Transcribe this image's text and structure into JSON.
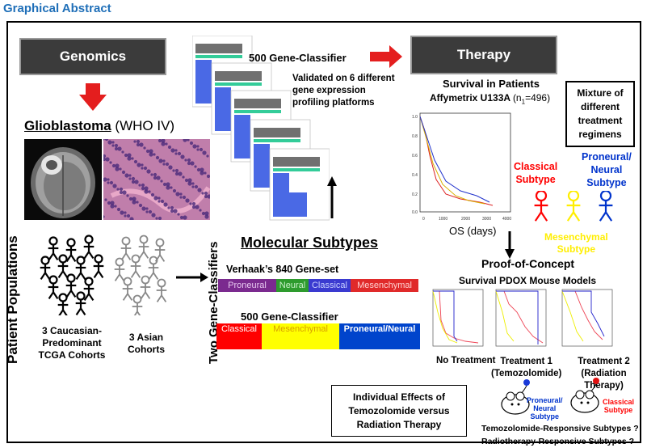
{
  "header": {
    "title": "Graphical Abstract"
  },
  "left": {
    "genomics": "Genomics",
    "glioblastoma": "Glioblastoma",
    "who": "(WHO IV)",
    "patient_populations": "Patient Populations",
    "cohort_a": [
      "3 Caucasian-",
      "Predominant",
      "TCGA Cohorts"
    ],
    "cohort_b": [
      "3 Asian",
      "Cohorts"
    ]
  },
  "center": {
    "classifier_title": "500 Gene-Classifier",
    "validated": [
      "Validated on 6 different",
      "gene expression",
      "profiling platforms"
    ],
    "molecular_subtypes": "Molecular Subtypes",
    "two_classifiers": "Two Gene-Classifiers",
    "verhaak": "Verhaak’s 840 Gene-set",
    "verhaak_segments": [
      {
        "label": "Proneural",
        "color": "#7b2a8f",
        "text": "#e8c8f0"
      },
      {
        "label": "Neural",
        "color": "#2e9b2e",
        "text": "#c8f0c8"
      },
      {
        "label": "Classical",
        "color": "#3a3ad0",
        "text": "#c8d0ff"
      },
      {
        "label": "Mesenchymal",
        "color": "#e02a2a",
        "text": "#ffd0d0"
      }
    ],
    "classifier2": "500 Gene-Classifier",
    "classifier2_segments": [
      {
        "label": "Classical",
        "color": "#ff0000",
        "text": "#ffffff"
      },
      {
        "label": "Mesenchymal",
        "color": "#ffff00",
        "text": "#d8a000"
      },
      {
        "label": "Proneural/Neural",
        "color": "#0044cc",
        "text": "#ffffff"
      }
    ],
    "effects_box": [
      "Individual Effects of",
      "Temozolomide versus",
      "Radiation Therapy"
    ]
  },
  "right": {
    "therapy": "Therapy",
    "survival_title": "Survival in Patients",
    "affy": "Affymetrix U133A",
    "affy_n": "(n",
    "affy_sub": "1",
    "affy_val": "=496)",
    "mixture": [
      "Mixture of",
      "different",
      "treatment",
      "regimens"
    ],
    "os_days": "OS (days)",
    "classical_subtype": [
      "Classical",
      "Subtype"
    ],
    "proneural_subtype": [
      "Proneural/",
      "Neural",
      "Subtype"
    ],
    "mesenchymal_subtype": [
      "Mesenchymal",
      "Subtype"
    ],
    "proof": "Proof-of-Concept",
    "pdox": "Survival PDOX Mouse Models",
    "no_treatment": "No Treatment",
    "treatment1": [
      "Treatment 1",
      "(Temozolomide)"
    ],
    "treatment2": [
      "Treatment 2",
      "(Radiation Therapy)"
    ],
    "mouse_pn": [
      "Proneural/",
      "Neural",
      "Subtype"
    ],
    "mouse_cl": [
      "Classical",
      "Subtype"
    ],
    "tmz_q": "Temozolomide-Responsive Subtypes ?",
    "radio_q": "Radiotherapy-Responsive Subtypes ?"
  },
  "colors": {
    "red": "#ff0000",
    "blue": "#0033cc",
    "yellow": "#ffee00",
    "title_blue": "#1f6fb8"
  }
}
